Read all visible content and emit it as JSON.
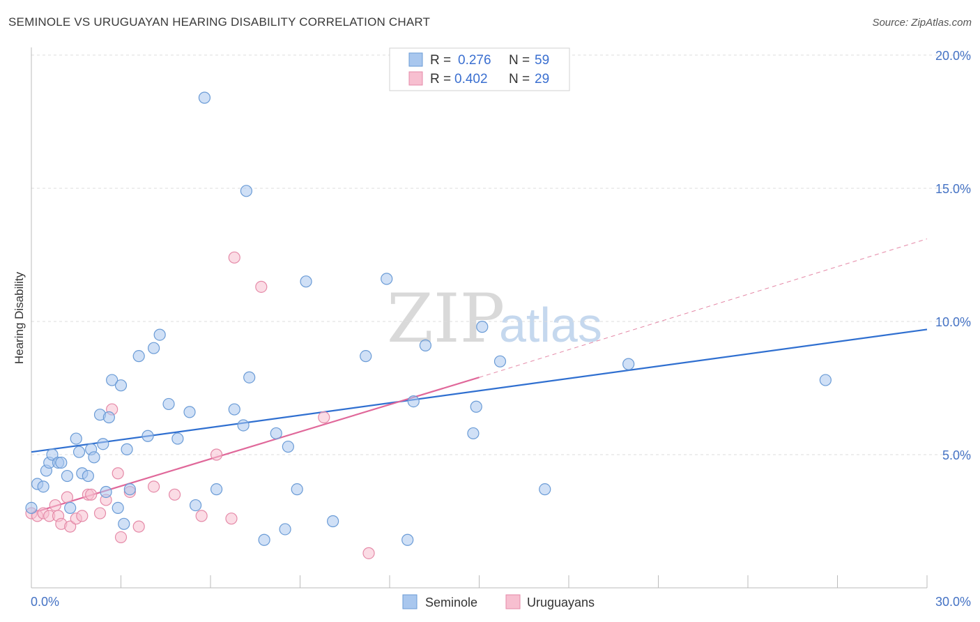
{
  "title": "SEMINOLE VS URUGUAYAN HEARING DISABILITY CORRELATION CHART",
  "source": "Source: ZipAtlas.com",
  "watermark": {
    "zip": "ZIP",
    "atlas": "atlas"
  },
  "colors": {
    "seminole_fill": "#a9c7ee",
    "seminole_stroke": "#6a9bd6",
    "seminole_line": "#2f6fd0",
    "uruguayan_fill": "#f7bfd0",
    "uruguayan_stroke": "#e58aa8",
    "uruguayan_line": "#e0689a",
    "grid": "#dddddd",
    "tick_label": "#4472c4"
  },
  "legend": {
    "rows": [
      {
        "r_label": "R =",
        "r_value": "0.276",
        "n_label": "N =",
        "n_value": "59"
      },
      {
        "r_label": "R =",
        "r_value": "0.402",
        "n_label": "N =",
        "n_value": "29"
      }
    ]
  },
  "chart_data": {
    "type": "scatter",
    "title": "SEMINOLE VS URUGUAYAN HEARING DISABILITY CORRELATION CHART",
    "xlabel": "",
    "ylabel": "Hearing Disability",
    "xlim": [
      0,
      30
    ],
    "ylim": [
      0,
      20
    ],
    "x_tick_labels": [
      "0.0%",
      "30.0%"
    ],
    "y_ticks": [
      5,
      10,
      15,
      20
    ],
    "y_tick_labels": [
      "5.0%",
      "10.0%",
      "15.0%",
      "20.0%"
    ],
    "grid": true,
    "legend_position": "top-center",
    "series": [
      {
        "name": "Seminole",
        "r": 0.276,
        "n": 59,
        "trend": {
          "x0": 0,
          "y0": 5.1,
          "x1": 30,
          "y1": 9.7
        },
        "points": [
          [
            0.0,
            3.0
          ],
          [
            0.2,
            3.9
          ],
          [
            0.4,
            3.8
          ],
          [
            0.5,
            4.4
          ],
          [
            0.6,
            4.7
          ],
          [
            0.7,
            5.0
          ],
          [
            0.9,
            4.7
          ],
          [
            1.0,
            4.7
          ],
          [
            1.2,
            4.2
          ],
          [
            1.3,
            3.0
          ],
          [
            1.5,
            5.6
          ],
          [
            1.6,
            5.1
          ],
          [
            1.7,
            4.3
          ],
          [
            1.9,
            4.2
          ],
          [
            2.0,
            5.2
          ],
          [
            2.1,
            4.9
          ],
          [
            2.3,
            6.5
          ],
          [
            2.4,
            5.4
          ],
          [
            2.5,
            3.6
          ],
          [
            2.6,
            6.4
          ],
          [
            2.7,
            7.8
          ],
          [
            2.9,
            3.0
          ],
          [
            3.0,
            7.6
          ],
          [
            3.1,
            2.4
          ],
          [
            3.2,
            5.2
          ],
          [
            3.3,
            3.7
          ],
          [
            3.6,
            8.7
          ],
          [
            3.9,
            5.7
          ],
          [
            4.1,
            9.0
          ],
          [
            4.3,
            9.5
          ],
          [
            4.6,
            6.9
          ],
          [
            4.9,
            5.6
          ],
          [
            5.3,
            6.6
          ],
          [
            5.5,
            3.1
          ],
          [
            5.8,
            18.4
          ],
          [
            6.2,
            3.7
          ],
          [
            6.8,
            6.7
          ],
          [
            7.1,
            6.1
          ],
          [
            7.2,
            14.9
          ],
          [
            7.3,
            7.9
          ],
          [
            7.8,
            1.8
          ],
          [
            8.2,
            5.8
          ],
          [
            8.5,
            2.2
          ],
          [
            8.6,
            5.3
          ],
          [
            8.9,
            3.7
          ],
          [
            9.2,
            11.5
          ],
          [
            10.1,
            2.5
          ],
          [
            11.2,
            8.7
          ],
          [
            11.9,
            11.6
          ],
          [
            12.6,
            1.8
          ],
          [
            12.8,
            7.0
          ],
          [
            13.2,
            9.1
          ],
          [
            14.8,
            5.8
          ],
          [
            14.9,
            6.8
          ],
          [
            15.1,
            9.8
          ],
          [
            15.7,
            8.5
          ],
          [
            17.2,
            3.7
          ],
          [
            20.0,
            8.4
          ],
          [
            26.6,
            7.8
          ]
        ]
      },
      {
        "name": "Uruguayans",
        "r": 0.402,
        "n": 29,
        "trend": {
          "x0": 0,
          "y0": 2.8,
          "x1": 15.0,
          "y1": 7.9
        },
        "trend_extension": {
          "x0": 15.0,
          "y0": 7.9,
          "x1": 30,
          "y1": 13.1
        },
        "points": [
          [
            0.0,
            2.8
          ],
          [
            0.2,
            2.7
          ],
          [
            0.4,
            2.8
          ],
          [
            0.6,
            2.7
          ],
          [
            0.8,
            3.1
          ],
          [
            0.9,
            2.7
          ],
          [
            1.0,
            2.4
          ],
          [
            1.2,
            3.4
          ],
          [
            1.3,
            2.3
          ],
          [
            1.5,
            2.6
          ],
          [
            1.7,
            2.7
          ],
          [
            1.9,
            3.5
          ],
          [
            2.0,
            3.5
          ],
          [
            2.3,
            2.8
          ],
          [
            2.5,
            3.3
          ],
          [
            2.7,
            6.7
          ],
          [
            2.9,
            4.3
          ],
          [
            3.0,
            1.9
          ],
          [
            3.3,
            3.6
          ],
          [
            3.6,
            2.3
          ],
          [
            4.1,
            3.8
          ],
          [
            4.8,
            3.5
          ],
          [
            5.7,
            2.7
          ],
          [
            6.2,
            5.0
          ],
          [
            6.7,
            2.6
          ],
          [
            6.8,
            12.4
          ],
          [
            7.7,
            11.3
          ],
          [
            9.8,
            6.4
          ],
          [
            11.3,
            1.3
          ]
        ]
      }
    ]
  }
}
